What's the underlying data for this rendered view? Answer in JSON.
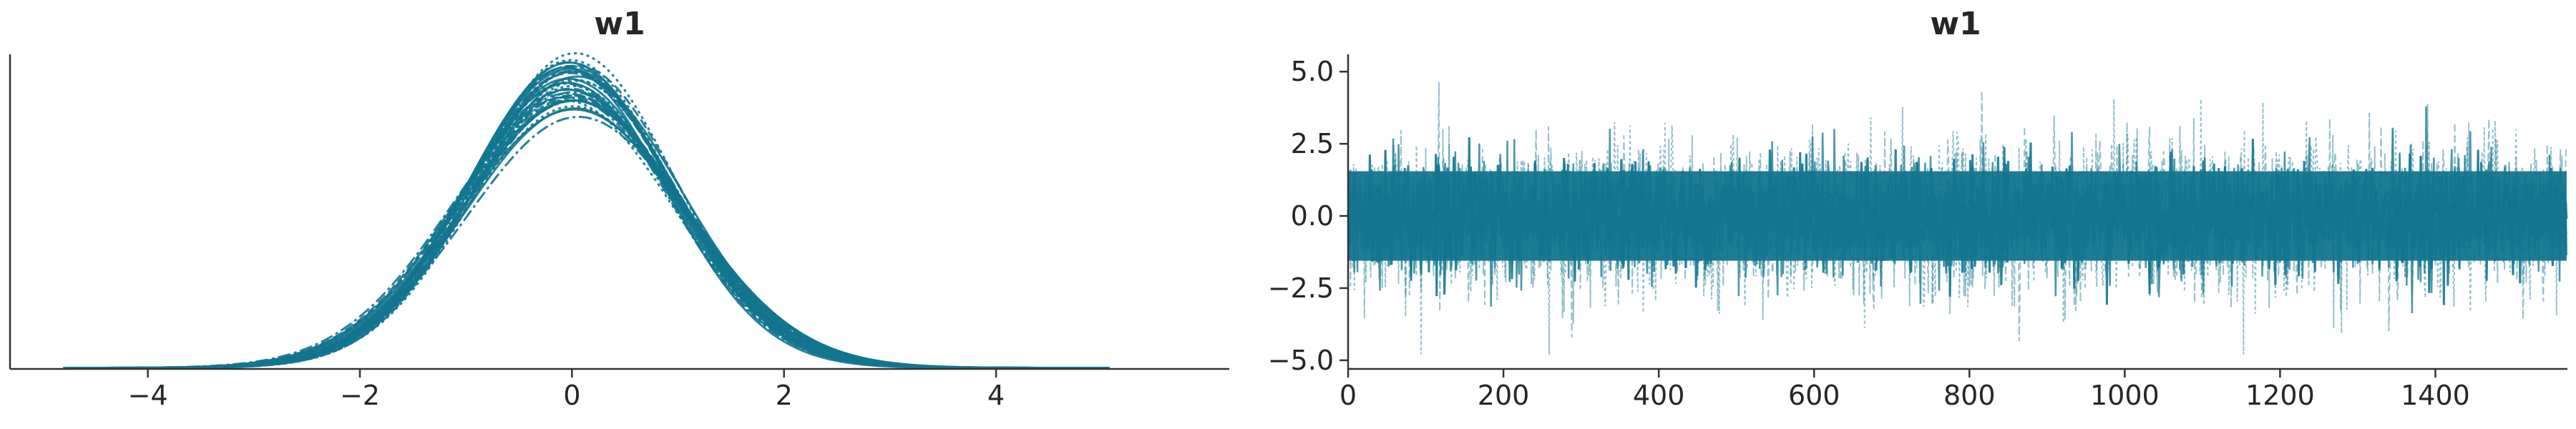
{
  "chart_data": [
    {
      "type": "line",
      "subtype": "kde",
      "title": "w1",
      "xlabel": "",
      "ylabel": "",
      "xlim": [
        -5.3,
        6.2
      ],
      "ylim": [
        0,
        0.45
      ],
      "x_ticks": [
        -4,
        -2,
        0,
        2,
        4
      ],
      "x_tick_labels": [
        "−4",
        "−2",
        "0",
        "2",
        "4"
      ],
      "y_ticks_visible": false,
      "grid": false,
      "legend": "none",
      "color": "#13758f",
      "distribution": {
        "mean": 0,
        "std": 1.0,
        "x_min": -4.8,
        "x_max": 5.1,
        "n_curves": 40
      }
    },
    {
      "type": "line",
      "subtype": "trace",
      "title": "w1",
      "xlabel": "",
      "ylabel": "",
      "xlim": [
        0,
        1570
      ],
      "ylim": [
        -5.3,
        5.6
      ],
      "x_ticks": [
        0,
        200,
        400,
        600,
        800,
        1000,
        1200,
        1400
      ],
      "x_tick_labels": [
        "0",
        "200",
        "400",
        "600",
        "800",
        "1000",
        "1200",
        "1400"
      ],
      "y_ticks": [
        -5.0,
        -2.5,
        0.0,
        2.5,
        5.0
      ],
      "y_tick_labels": [
        "−5.0",
        "−2.5",
        "0.0",
        "2.5",
        "5.0"
      ],
      "grid": false,
      "legend": "none",
      "color": "#13758f",
      "trace": {
        "n_draws": 1570,
        "mean": 0,
        "std": 1.0,
        "min": -4.8,
        "max": 5.0
      }
    }
  ]
}
